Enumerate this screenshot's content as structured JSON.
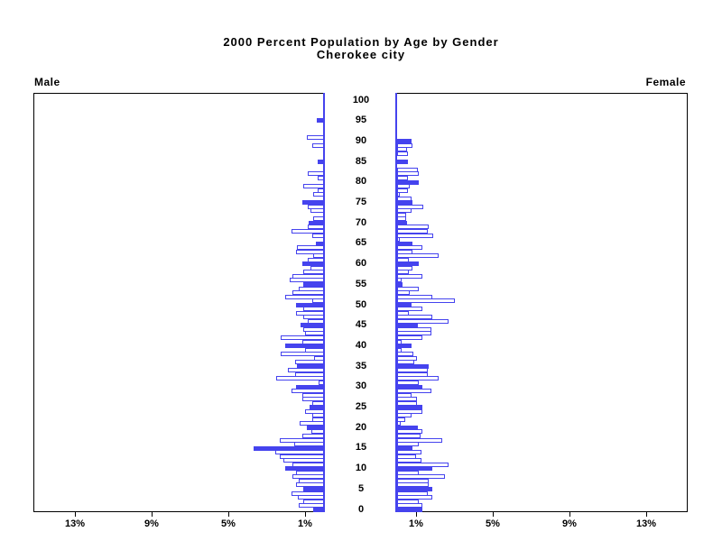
{
  "chart_data": {
    "type": "bar",
    "subtype": "population-pyramid",
    "title_line1": "2000 Percent Population by Age by Gender",
    "title_line2": "Cherokee city",
    "left_label": "Male",
    "right_label": "Female",
    "age_axis": {
      "min": 0,
      "max": 100,
      "step": 5,
      "tick_labels": [
        "0",
        "5",
        "10",
        "15",
        "20",
        "25",
        "30",
        "35",
        "40",
        "45",
        "50",
        "55",
        "60",
        "65",
        "70",
        "75",
        "80",
        "85",
        "90",
        "95",
        "100"
      ]
    },
    "pct_axis": {
      "min": 0,
      "max": 15,
      "ticks": [
        1,
        5,
        9,
        13
      ],
      "tick_labels": [
        "1%",
        "5%",
        "9%",
        "13%"
      ]
    },
    "legend": "none",
    "grid": "off",
    "bar_fill_rule": "bars at ages divisible by 5 are solid blue; all other ages are white with blue outline",
    "colors": {
      "bar_outline": "#4543ee",
      "bar_solid": "#4543ee",
      "bar_empty_fill": "#ffffff",
      "frame": "#000000",
      "text": "#000000"
    },
    "male_pct_by_age": [
      0.55,
      1.3,
      1.1,
      1.35,
      1.7,
      1.1,
      1.45,
      1.3,
      1.65,
      1.45,
      2.0,
      1.65,
      2.1,
      2.3,
      2.55,
      3.65,
      1.55,
      2.3,
      1.15,
      0.65,
      0.9,
      1.25,
      0.6,
      0.6,
      1.0,
      0.75,
      0.6,
      1.15,
      1.15,
      1.7,
      1.45,
      0.3,
      2.5,
      1.5,
      1.9,
      1.4,
      1.5,
      0.5,
      2.25,
      1.0,
      2.0,
      1.15,
      2.25,
      1.0,
      1.1,
      1.2,
      0.85,
      1.1,
      1.45,
      1.1,
      1.45,
      0.6,
      2.0,
      1.65,
      1.3,
      1.1,
      1.8,
      1.65,
      1.1,
      0.7,
      1.15,
      0.85,
      0.55,
      1.45,
      1.4,
      0.4,
      0,
      0.6,
      1.7,
      0.85,
      0.8,
      0.55,
      0,
      0.7,
      0.85,
      1.15,
      0,
      0.55,
      0.35,
      1.1,
      0,
      0.35,
      0.85,
      0,
      0,
      0.35,
      0,
      0,
      0,
      0.6,
      0,
      0.9,
      0,
      0,
      0,
      0.37,
      0,
      0,
      0,
      0,
      0
    ],
    "female_pct_by_age": [
      1.3,
      1.3,
      1.15,
      1.85,
      1.6,
      1.85,
      1.65,
      1.65,
      2.5,
      1.15,
      1.85,
      2.7,
      1.25,
      1.0,
      1.25,
      0.8,
      1.15,
      2.35,
      1.2,
      1.3,
      1.1,
      0.2,
      0.4,
      0.75,
      1.3,
      1.3,
      1.05,
      1.05,
      0.75,
      1.8,
      1.3,
      1.15,
      2.15,
      1.6,
      1.6,
      1.65,
      0.9,
      1.05,
      0.85,
      0.25,
      0.75,
      0.25,
      1.3,
      1.8,
      1.8,
      1.1,
      2.7,
      1.85,
      0.6,
      1.3,
      0.75,
      3.0,
      1.85,
      0.65,
      1.15,
      0.3,
      0.25,
      1.3,
      0.6,
      0.8,
      1.15,
      0.6,
      2.15,
      0.8,
      1.3,
      0.8,
      0.15,
      1.9,
      1.6,
      1.65,
      0.5,
      0.45,
      0.45,
      0.75,
      1.35,
      0.8,
      0.75,
      0.15,
      0.55,
      0.65,
      1.15,
      0.55,
      1.15,
      1.1,
      0,
      0.55,
      0,
      0.55,
      0.5,
      0.8,
      0.75,
      0,
      0,
      0,
      0,
      0,
      0,
      0,
      0,
      0,
      0
    ]
  },
  "layout_note": "two mirrored percent axes (0-15%) with center age scale 0-100"
}
